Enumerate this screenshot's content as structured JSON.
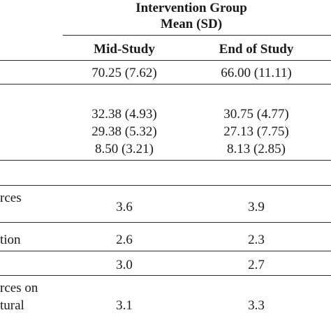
{
  "header": {
    "group_title": "Intervention Group",
    "group_subtitle": "Mean (SD)",
    "col_mid": "Mid-Study",
    "col_end": "End of Study"
  },
  "row_labels": {
    "resources_fragment": "rces",
    "education_fragment": "tion",
    "resources_on_fragment": "rces on",
    "cultural_fragment": "tural"
  },
  "rows": [
    {
      "mid": "70.25 (7.62)",
      "end": "66.00 (11.11)"
    },
    {
      "mid": "32.38 (4.93)",
      "end": "30.75 (4.77)"
    },
    {
      "mid": "29.38 (5.32)",
      "end": "27.13 (7.75)"
    },
    {
      "mid": "8.50 (3.21)",
      "end": "8.13 (2.85)"
    },
    {
      "mid": "3.6",
      "end": "3.9"
    },
    {
      "mid": "2.6",
      "end": "2.3"
    },
    {
      "mid": "3.0",
      "end": "2.7"
    },
    {
      "mid": "3.1",
      "end": "3.3"
    }
  ]
}
